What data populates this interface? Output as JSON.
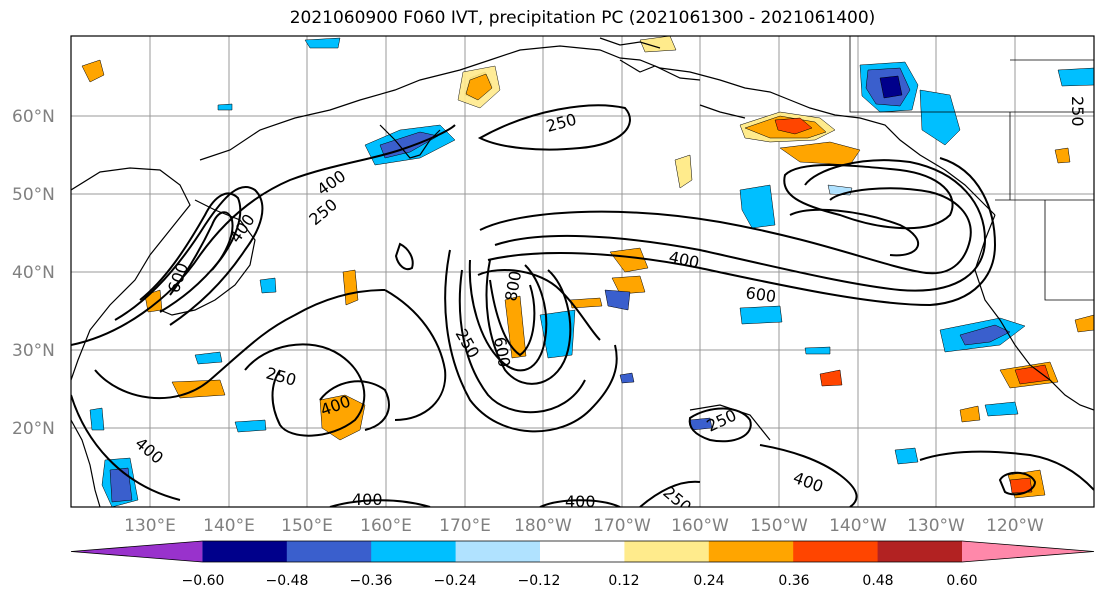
{
  "title": "2021060900 F060 IVT, precipitation PC (2021061300 - 2021061400)",
  "lat_labels": [
    "60°N",
    "50°N",
    "40°N",
    "30°N",
    "20°N"
  ],
  "lon_labels": [
    "130°E",
    "140°E",
    "150°E",
    "160°E",
    "170°E",
    "180°W",
    "170°W",
    "160°W",
    "150°W",
    "140°W",
    "130°W",
    "120°W"
  ],
  "contour_labels": [
    "250",
    "400",
    "250",
    "400",
    "600",
    "250",
    "400",
    "600",
    "800",
    "600",
    "250",
    "400",
    "250",
    "400",
    "250",
    "400",
    "400",
    "250",
    "400"
  ],
  "colorbar": {
    "colors": [
      "#9932cc",
      "#00008b",
      "#3a5fcd",
      "#00bfff",
      "#b0e2ff",
      "#ffffff",
      "#ffeb8c",
      "#ffa500",
      "#ff4500",
      "#b22222",
      "#ff88aa"
    ],
    "ticks": [
      "−0.60",
      "−0.48",
      "−0.36",
      "−0.24",
      "−0.12",
      "0.12",
      "0.24",
      "0.36",
      "0.48",
      "0.60"
    ]
  }
}
